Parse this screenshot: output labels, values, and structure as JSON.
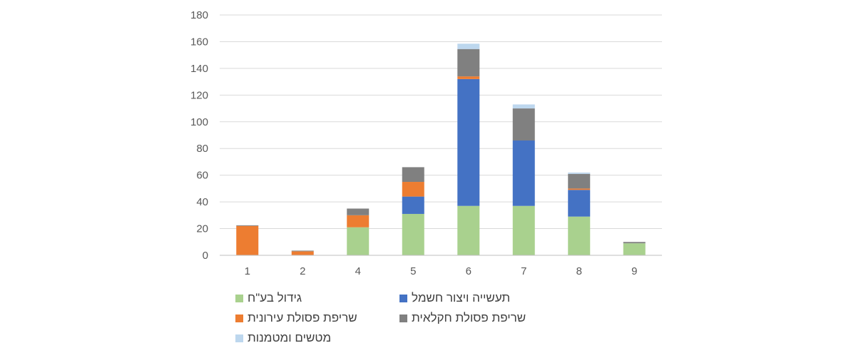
{
  "chart_data": {
    "type": "bar",
    "stacked": true,
    "categories": [
      "1",
      "2",
      "4",
      "5",
      "6",
      "7",
      "8",
      "9"
    ],
    "ylim": [
      0,
      180
    ],
    "yticks": [
      "0",
      "20",
      "40",
      "60",
      "80",
      "100",
      "120",
      "140",
      "160",
      "180"
    ],
    "grid": true,
    "legend_position": "bottom",
    "series": [
      {
        "name": "גידול בע\"ח",
        "color": "#a9d18e",
        "values": [
          0,
          0,
          21,
          31,
          37,
          37,
          29,
          9
        ]
      },
      {
        "name": "תעשייה ויצור חשמל",
        "color": "#4472c4",
        "values": [
          0,
          0,
          0,
          13,
          95,
          49,
          20,
          0
        ]
      },
      {
        "name": "שריפת פסולת עירונית",
        "color": "#ed7d31",
        "values": [
          22,
          3,
          9,
          11,
          2,
          0,
          1,
          0
        ]
      },
      {
        "name": "שריפת פסולת חקלאית",
        "color": "#808080",
        "values": [
          0.5,
          0.5,
          5,
          11,
          20.5,
          24,
          11,
          1
        ]
      },
      {
        "name": "מטשים ומטמנות",
        "color": "#bdd7ee",
        "values": [
          0,
          0,
          0,
          0,
          4,
          3,
          1,
          0
        ]
      }
    ]
  }
}
